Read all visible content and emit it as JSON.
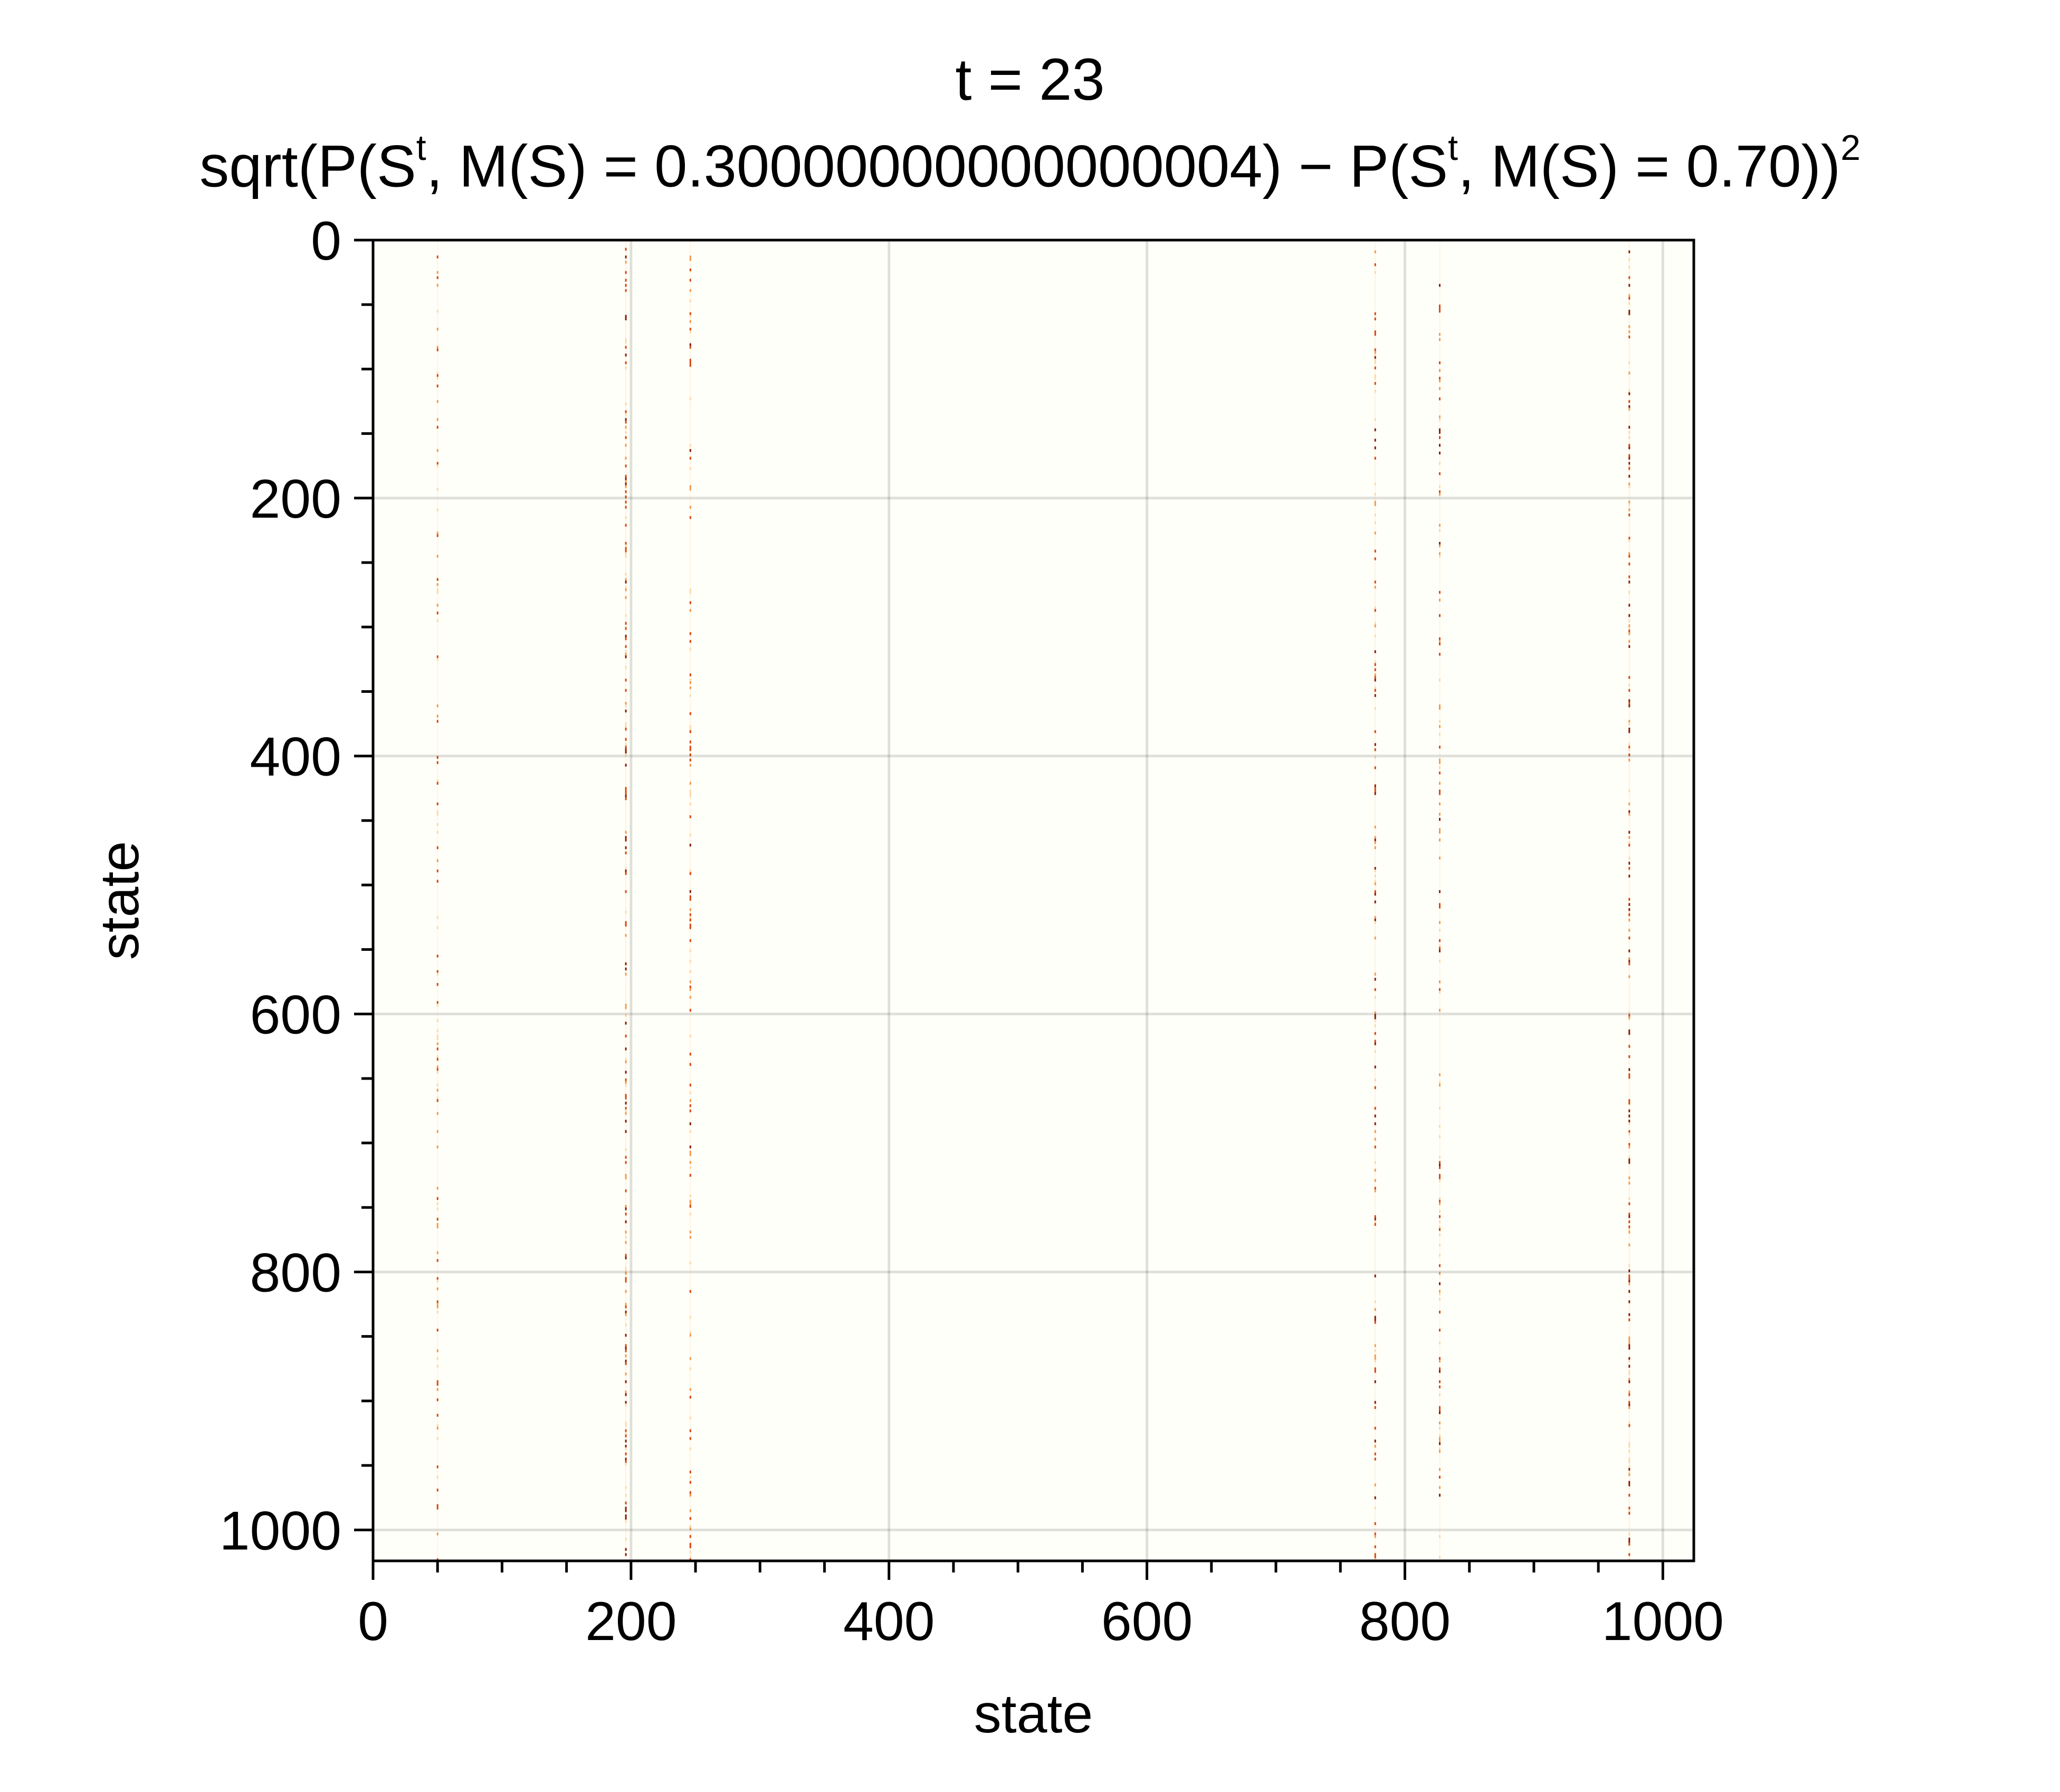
{
  "chart_data": {
    "type": "heatmap",
    "title": "t = 23",
    "subtitle": {
      "prefix": "sqrt(P(S",
      "sup1": "t",
      "middle1": ", M(S) = 0.30000000000000004) − P(S",
      "sup2": "t",
      "middle2": ", M(S) = 0.70))",
      "sup3": "2"
    },
    "xlabel": "state",
    "ylabel": "state",
    "xlim": [
      0,
      1024
    ],
    "ylim": [
      1024,
      0
    ],
    "xticks": [
      "0",
      "200",
      "400",
      "600",
      "800",
      "1000"
    ],
    "yticks": [
      "0",
      "200",
      "400",
      "600",
      "800",
      "1000"
    ],
    "xtick_values": [
      0,
      200,
      400,
      600,
      800,
      1000
    ],
    "ytick_values": [
      0,
      200,
      400,
      600,
      800,
      1000
    ],
    "grid": true,
    "colormap": [
      "#fffffa",
      "#fdd9a8",
      "#f59a4a",
      "#d9480f",
      "#8c1d04"
    ],
    "background_color": "#fffffa",
    "active_columns": [
      {
        "x": 50,
        "intensity": 0.55
      },
      {
        "x": 196,
        "intensity": 0.75
      },
      {
        "x": 246,
        "intensity": 0.6
      },
      {
        "x": 777,
        "intensity": 0.65
      },
      {
        "x": 827,
        "intensity": 0.6
      },
      {
        "x": 974,
        "intensity": 0.75
      }
    ]
  }
}
